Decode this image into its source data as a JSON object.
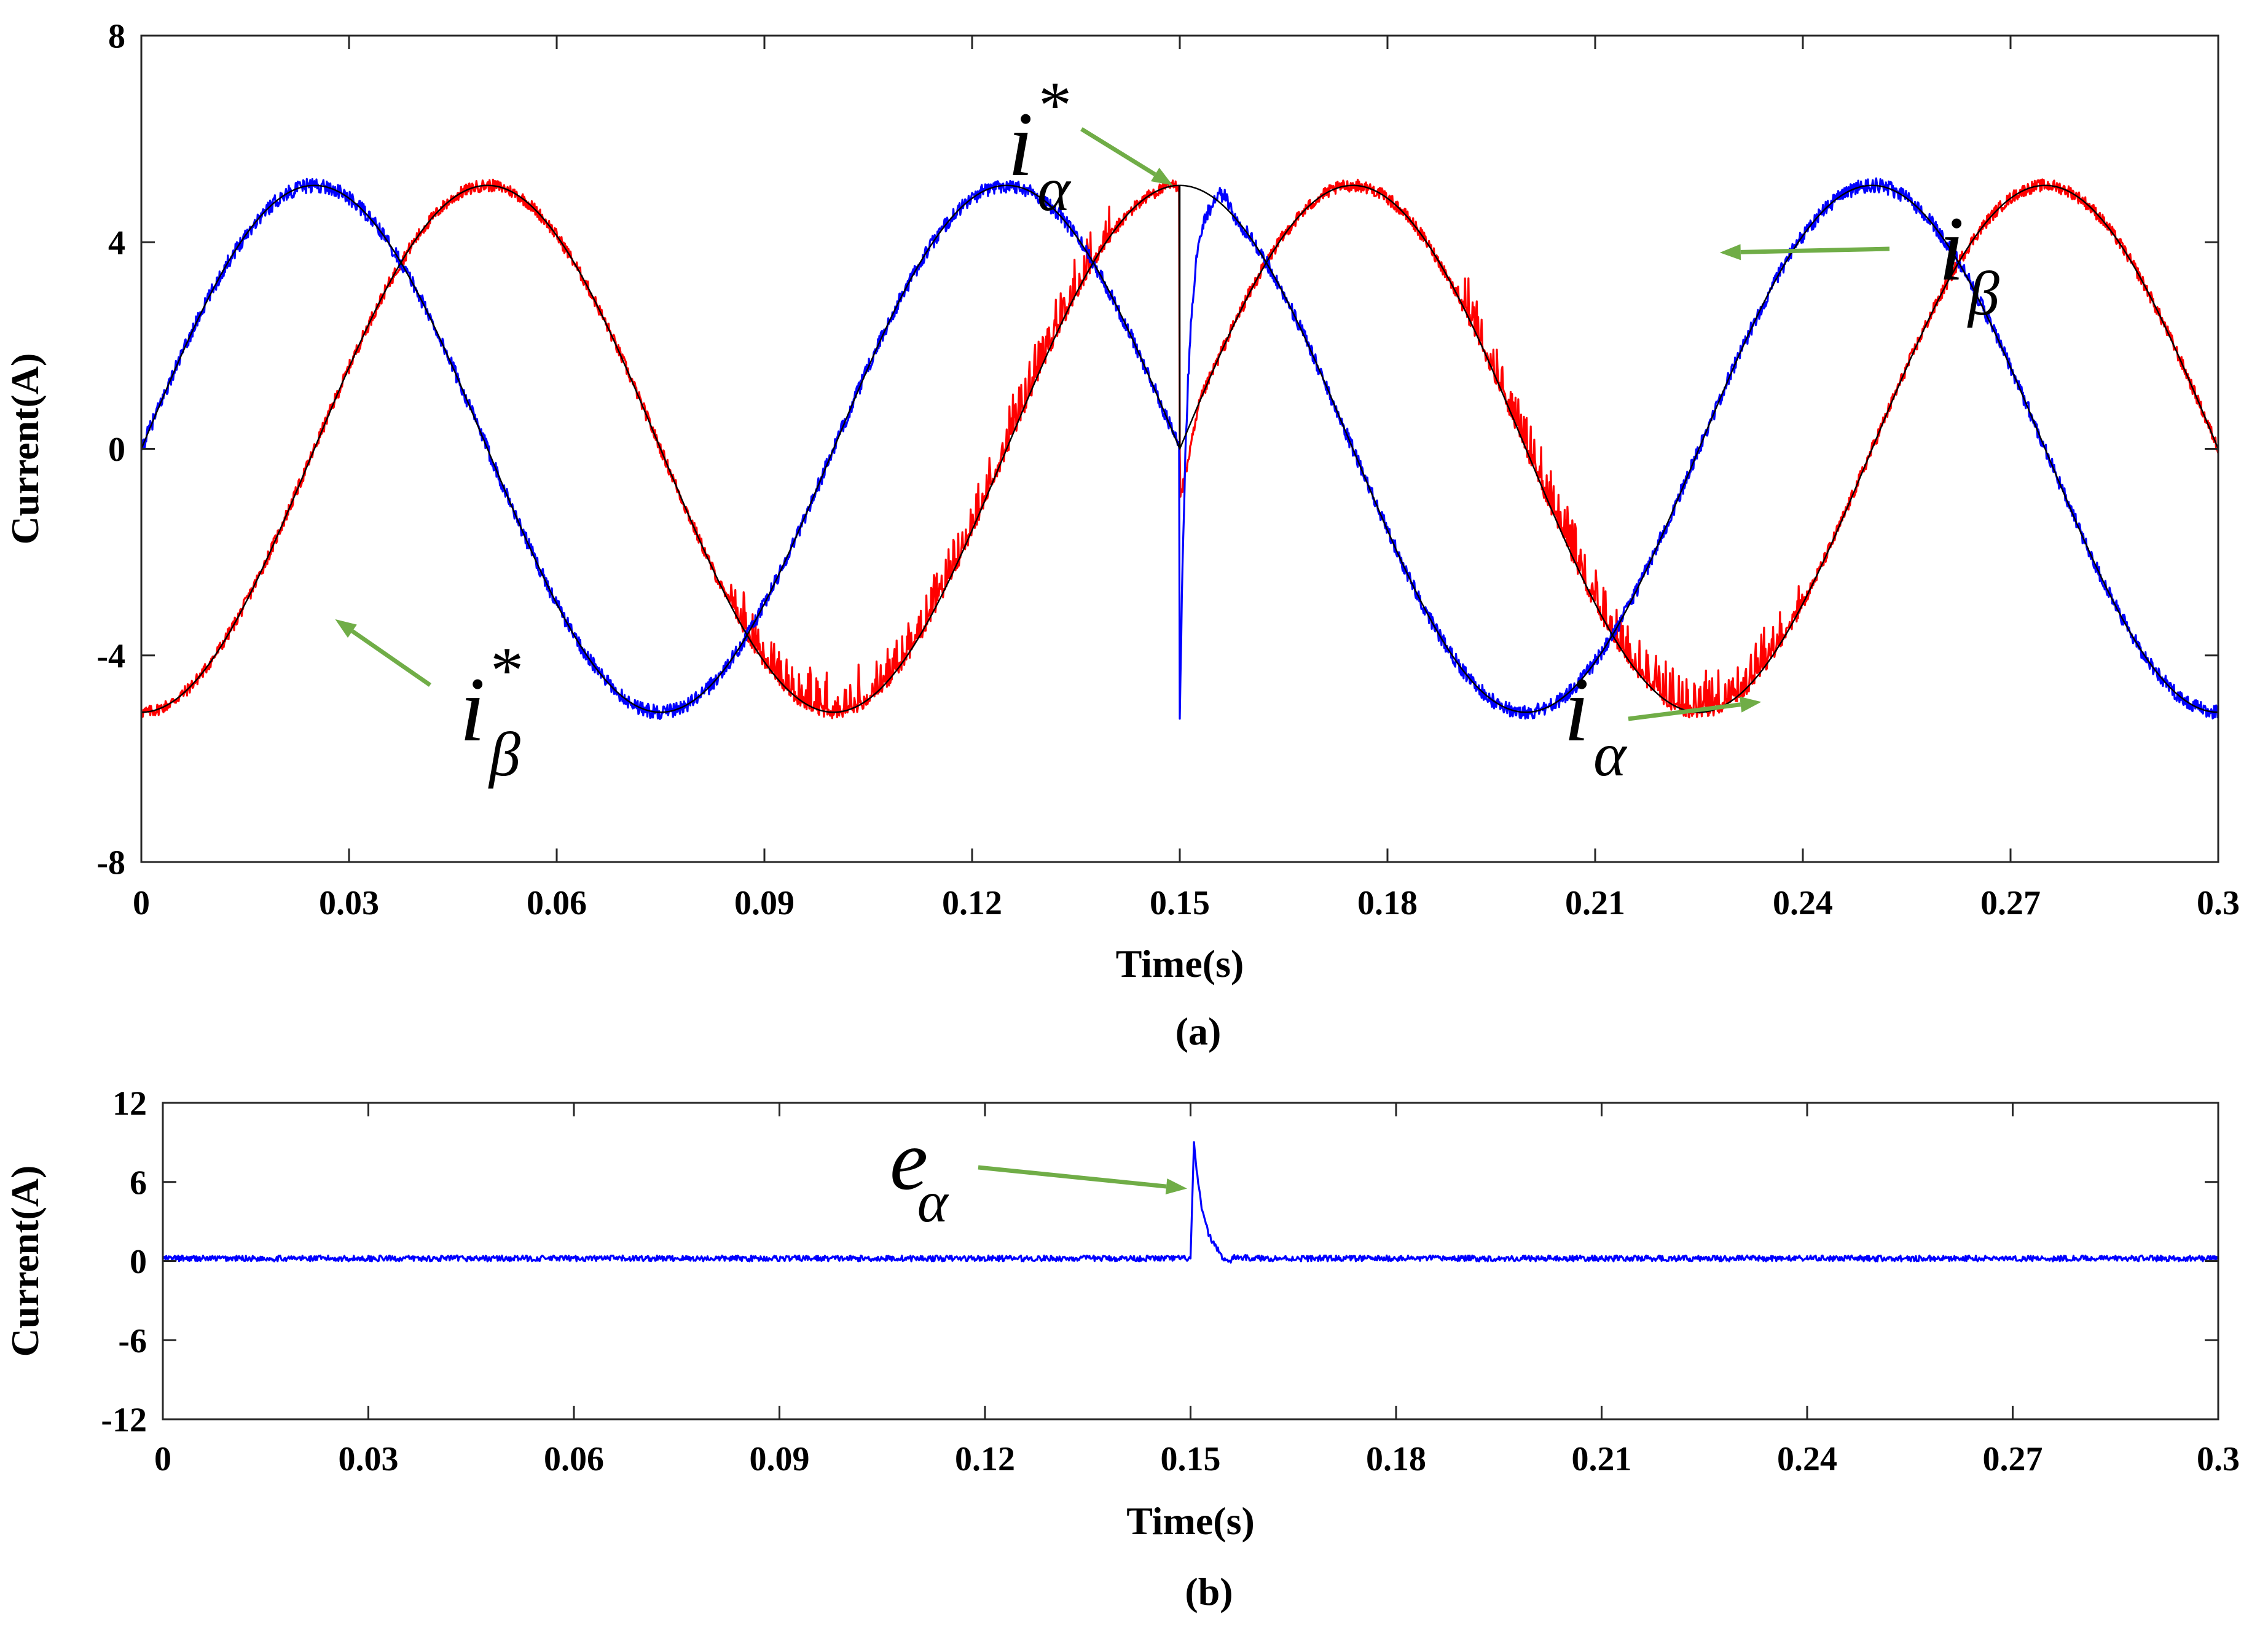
{
  "chart_data": [
    {
      "id": "a",
      "type": "line",
      "caption": "(a)",
      "xlabel": "Time(s)",
      "ylabel": "Current(A)",
      "xlim": [
        0,
        0.3
      ],
      "ylim": [
        -8,
        8
      ],
      "xticks": [
        "0",
        "0.03",
        "0.06",
        "0.09",
        "0.12",
        "0.15",
        "0.18",
        "0.21",
        "0.24",
        "0.27",
        "0.3"
      ],
      "xtick_values": [
        0,
        0.03,
        0.06,
        0.09,
        0.12,
        0.15,
        0.18,
        0.21,
        0.24,
        0.27,
        0.3
      ],
      "yticks": [
        "8",
        "4",
        "0",
        "-4",
        "-8"
      ],
      "ytick_values": [
        8,
        4,
        0,
        -4,
        -8
      ],
      "grid": false,
      "amplitude": 5.1,
      "fundamental_hz": 10,
      "fault_time": 0.15,
      "series": [
        {
          "name": "i_alpha_ref",
          "label": "iα*",
          "color": "#000000",
          "kind": "reference-alpha"
        },
        {
          "name": "i_beta_ref",
          "label": "iβ*",
          "color": "#000000",
          "kind": "reference-beta"
        },
        {
          "name": "i_alpha",
          "label": "iα",
          "color": "#0000ff",
          "kind": "measured-alpha"
        },
        {
          "name": "i_beta",
          "label": "iβ",
          "color": "#ff0000",
          "kind": "measured-beta"
        }
      ],
      "annotations": [
        {
          "main": "i",
          "sub": "α",
          "sup": "*",
          "target_x": 0.149,
          "target_y": 5.1,
          "arrow_color": "#70ad47"
        },
        {
          "main": "i",
          "sub": "β",
          "sup": "",
          "target_x": 0.228,
          "target_y": 3.8,
          "arrow_color": "#70ad47"
        },
        {
          "main": "i",
          "sub": "β",
          "sup": "*",
          "target_x": 0.028,
          "target_y": -3.3,
          "arrow_color": "#70ad47"
        },
        {
          "main": "i",
          "sub": "α",
          "sup": "",
          "target_x": 0.234,
          "target_y": -4.9,
          "arrow_color": "#70ad47"
        }
      ]
    },
    {
      "id": "b",
      "type": "line",
      "caption": "(b)",
      "xlabel": "Time(s)",
      "ylabel": "Current(A)",
      "xlim": [
        0,
        0.3
      ],
      "ylim": [
        -12,
        12
      ],
      "xticks": [
        "0",
        "0.03",
        "0.06",
        "0.09",
        "0.12",
        "0.15",
        "0.18",
        "0.21",
        "0.24",
        "0.27",
        "0.3"
      ],
      "xtick_values": [
        0,
        0.03,
        0.06,
        0.09,
        0.12,
        0.15,
        0.18,
        0.21,
        0.24,
        0.27,
        0.3
      ],
      "yticks": [
        "12",
        "6",
        "0",
        "-6",
        "-12"
      ],
      "ytick_values": [
        12,
        6,
        0,
        -6,
        -12
      ],
      "grid": false,
      "series": [
        {
          "name": "e_alpha",
          "label": "eα",
          "color": "#0000ff",
          "baseline": 0.2,
          "peak": 9.0,
          "peak_time": 0.1505
        }
      ],
      "annotations": [
        {
          "main": "e",
          "sub": "α",
          "sup": "",
          "target_x": 0.1495,
          "target_y": 5.5,
          "arrow_color": "#70ad47"
        }
      ]
    }
  ]
}
